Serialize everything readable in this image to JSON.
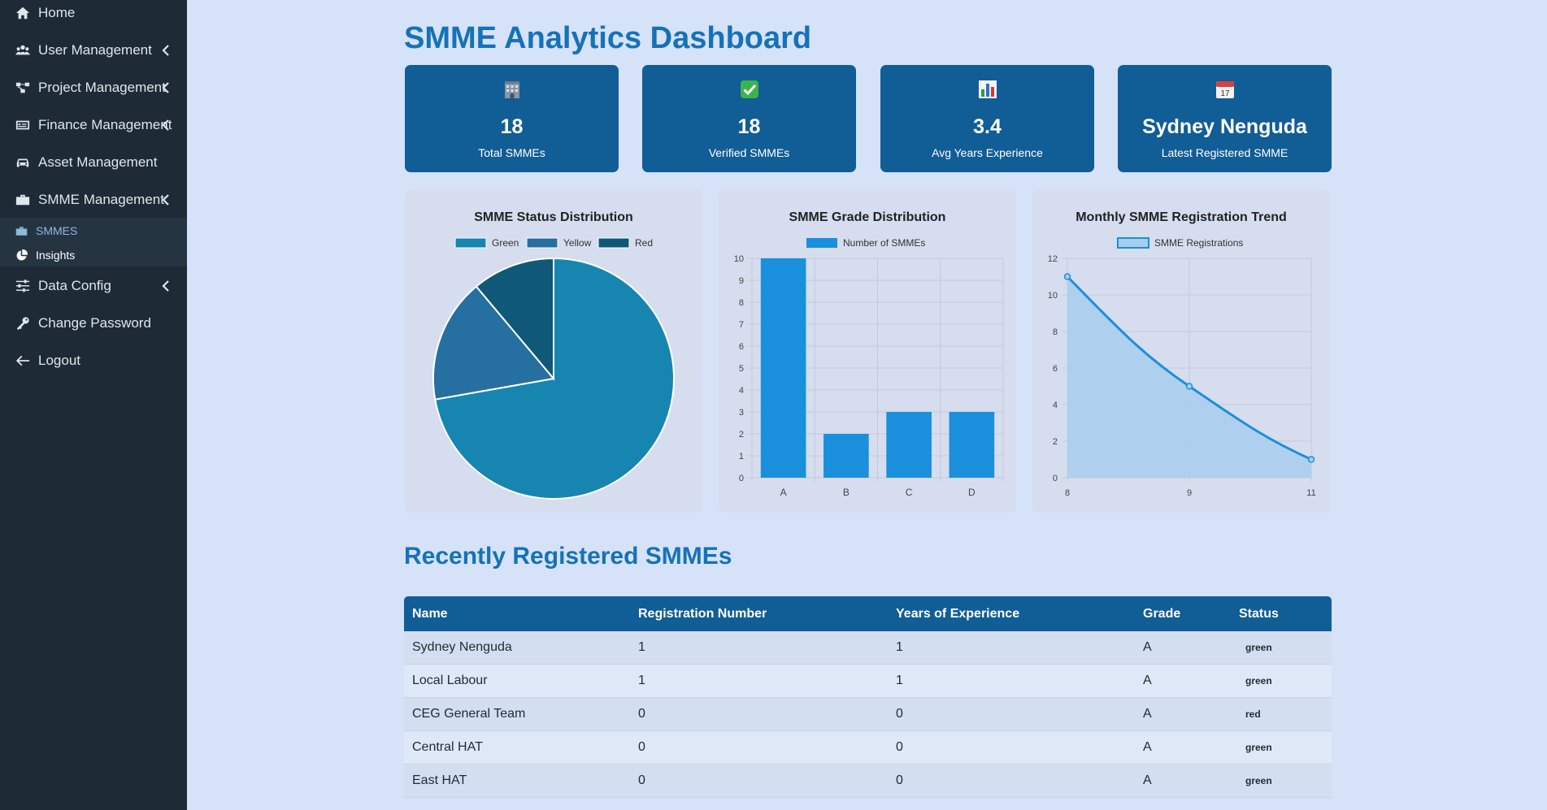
{
  "sidebar": {
    "items": [
      {
        "label": "Home",
        "icon": "home-icon"
      },
      {
        "label": "User Management",
        "icon": "users-icon"
      },
      {
        "label": "Project Management",
        "icon": "project-diagram-icon"
      },
      {
        "label": "Finance Management",
        "icon": "finance-card-icon"
      },
      {
        "label": "Asset Management",
        "icon": "car-icon"
      },
      {
        "label": "SMME Management",
        "icon": "briefcase-icon"
      },
      {
        "label": "Data Config",
        "icon": "sliders-icon"
      },
      {
        "label": "Change Password",
        "icon": "key-icon"
      },
      {
        "label": "Logout",
        "icon": "arrow-left-icon"
      }
    ],
    "submenu": [
      {
        "label": "SMMES",
        "icon": "briefcase-icon",
        "color": "#8fb8dd"
      },
      {
        "label": "Insights",
        "icon": "chart-pie-icon",
        "color": "#ffffff"
      }
    ]
  },
  "dashboard": {
    "title": "SMME Analytics Dashboard",
    "cards": [
      {
        "icon": "building-icon",
        "value": "18",
        "label": "Total SMMEs"
      },
      {
        "icon": "check-mark-icon",
        "value": "18",
        "label": "Verified SMMEs"
      },
      {
        "icon": "bar-chart-icon",
        "value": "3.4",
        "label": "Avg Years Experience"
      },
      {
        "icon": "calendar-icon",
        "value": "Sydney Nenguda",
        "label": "Latest Registered SMME"
      }
    ]
  },
  "charts": {
    "status": {
      "title": "SMME Status Distribution",
      "legend": [
        "Green",
        "Yellow",
        "Red"
      ]
    },
    "grade": {
      "title": "SMME Grade Distribution",
      "legend": "Number of SMMEs"
    },
    "trend": {
      "title": "Monthly SMME Registration Trend",
      "legend": "SMME Registrations"
    }
  },
  "chart_data": [
    {
      "type": "pie",
      "title": "SMME Status Distribution",
      "categories": [
        "Green",
        "Yellow",
        "Red"
      ],
      "values": [
        13,
        3,
        2
      ],
      "colors": [
        "#1685b0",
        "#2570a0",
        "#0f5878"
      ],
      "legend": "top"
    },
    {
      "type": "bar",
      "title": "SMME Grade Distribution",
      "categories": [
        "A",
        "B",
        "C",
        "D"
      ],
      "series": [
        {
          "name": "Number of SMMEs",
          "values": [
            10,
            2,
            3,
            3
          ]
        }
      ],
      "ylim": [
        0,
        10
      ],
      "yticks": [
        0,
        1,
        2,
        3,
        4,
        5,
        6,
        7,
        8,
        9,
        10
      ],
      "color": "#1a8fdc",
      "grid": true
    },
    {
      "type": "area",
      "title": "Monthly SMME Registration Trend",
      "categories": [
        "8",
        "9",
        "11"
      ],
      "series": [
        {
          "name": "SMME Registrations",
          "values": [
            11,
            5,
            1
          ]
        }
      ],
      "ylim": [
        0,
        12
      ],
      "yticks": [
        0,
        2,
        4,
        6,
        8,
        10,
        12
      ],
      "color": "#1a8fdc",
      "fill": "#a8cdee",
      "grid": true
    }
  ],
  "recent": {
    "title": "Recently Registered SMMEs",
    "columns": [
      "Name",
      "Registration Number",
      "Years of Experience",
      "Grade",
      "Status"
    ],
    "rows": [
      [
        "Sydney Nenguda",
        "1",
        "1",
        "A",
        "green"
      ],
      [
        "Local Labour",
        "1",
        "1",
        "A",
        "green"
      ],
      [
        "CEG General Team",
        "0",
        "0",
        "A",
        "red"
      ],
      [
        "Central HAT",
        "0",
        "0",
        "A",
        "green"
      ],
      [
        "East HAT",
        "0",
        "0",
        "A",
        "green"
      ]
    ]
  }
}
